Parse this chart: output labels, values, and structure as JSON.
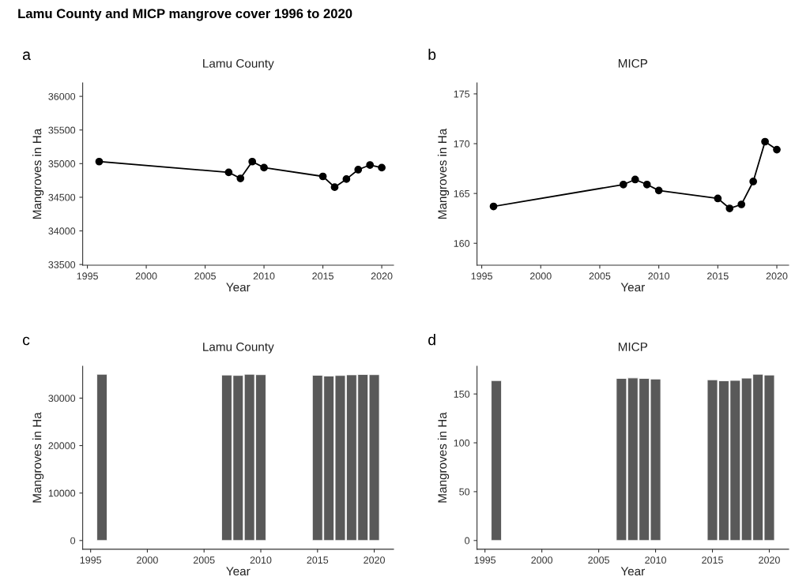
{
  "chart_data": [
    {
      "type": "line",
      "title": "Lamu County",
      "xlabel": "Year",
      "ylabel": "Mangroves in Ha",
      "annotations": [
        "Lamu County and MICP mangrove cover 1996 to 2020",
        "a"
      ],
      "x": [
        1996,
        2007,
        2008,
        2009,
        2010,
        2015,
        2016,
        2017,
        2018,
        2019,
        2020
      ],
      "series": [
        {
          "color": "#000000",
          "values": [
            35030,
            34870,
            34780,
            35030,
            34940,
            34810,
            34650,
            34770,
            34910,
            34980,
            34940
          ]
        }
      ],
      "marker": "circle",
      "line_style": "solid",
      "grid": false,
      "legend": false,
      "xlim": [
        1994.6,
        2021
      ],
      "xticks": [
        1995,
        2000,
        2005,
        2010,
        2015,
        2020
      ],
      "ylim": [
        33490,
        36200
      ],
      "yticks": [
        33500,
        34000,
        34500,
        35000,
        35500,
        36000
      ]
    },
    {
      "type": "line",
      "title": "MICP",
      "xlabel": "Year",
      "ylabel": "Mangroves in Ha",
      "annotations": [
        "b"
      ],
      "x": [
        1996,
        2007,
        2008,
        2009,
        2010,
        2015,
        2016,
        2017,
        2018,
        2019,
        2020
      ],
      "series": [
        {
          "color": "#000000",
          "values": [
            163.7,
            165.9,
            166.4,
            165.9,
            165.3,
            164.5,
            163.5,
            163.9,
            166.2,
            170.2,
            169.4
          ]
        }
      ],
      "marker": "circle",
      "line_style": "solid",
      "grid": false,
      "legend": false,
      "xlim": [
        1994.6,
        2021
      ],
      "xticks": [
        1995,
        2000,
        2005,
        2010,
        2015,
        2020
      ],
      "ylim": [
        157.8,
        176.1
      ],
      "yticks": [
        160,
        165,
        170,
        175
      ]
    },
    {
      "type": "bar",
      "title": "Lamu County",
      "xlabel": "Year",
      "ylabel": "Mangroves in Ha",
      "annotations": [
        "c"
      ],
      "x": [
        1996,
        2007,
        2008,
        2009,
        2010,
        2015,
        2016,
        2017,
        2018,
        2019,
        2020
      ],
      "series": [
        {
          "color": "#595959",
          "values": [
            35030,
            34870,
            34780,
            35030,
            34940,
            34810,
            34650,
            34770,
            34910,
            34980,
            34940
          ]
        }
      ],
      "grid": false,
      "legend": false,
      "xlim": [
        1994.3,
        2021.7
      ],
      "xticks": [
        1995,
        2000,
        2005,
        2010,
        2015,
        2020
      ],
      "ylim": [
        -1830,
        36700
      ],
      "yticks": [
        0,
        10000,
        20000,
        30000
      ]
    },
    {
      "type": "bar",
      "title": "MICP",
      "xlabel": "Year",
      "ylabel": "Mangroves in Ha",
      "annotations": [
        "d"
      ],
      "x": [
        1996,
        2007,
        2008,
        2009,
        2010,
        2015,
        2016,
        2017,
        2018,
        2019,
        2020
      ],
      "series": [
        {
          "color": "#595959",
          "values": [
            163.7,
            165.9,
            166.4,
            165.9,
            165.3,
            164.5,
            163.5,
            163.9,
            166.2,
            170.2,
            169.4
          ]
        }
      ],
      "grid": false,
      "legend": false,
      "xlim": [
        1994.3,
        2021.7
      ],
      "xticks": [
        1995,
        2000,
        2005,
        2010,
        2015,
        2020
      ],
      "ylim": [
        -8.9,
        178.3
      ],
      "yticks": [
        0,
        50,
        100,
        150
      ]
    }
  ]
}
